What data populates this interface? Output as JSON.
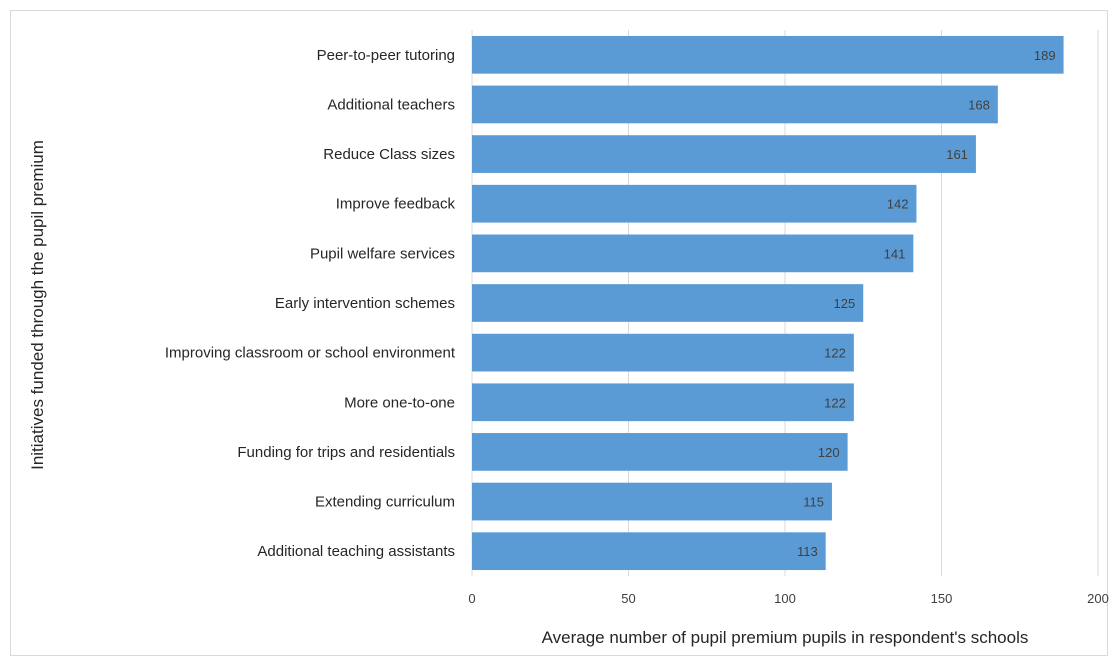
{
  "chart_data": {
    "type": "bar",
    "orientation": "horizontal",
    "categories": [
      "Peer-to-peer tutoring",
      "Additional teachers",
      "Reduce Class sizes",
      "Improve feedback",
      "Pupil welfare services",
      "Early intervention schemes",
      "Improving classroom or school environment",
      "More one-to-one",
      "Funding for trips and residentials",
      "Extending curriculum",
      "Additional teaching assistants"
    ],
    "values": [
      189,
      168,
      161,
      142,
      141,
      125,
      122,
      122,
      120,
      115,
      113
    ],
    "xlabel": "Average number of pupil premium pupils in respondent's schools",
    "ylabel": "Initiatives funded through the pupil premium",
    "xlim": [
      0,
      200
    ],
    "xticks": [
      0,
      50,
      100,
      150,
      200
    ],
    "grid": "vertical",
    "legend": "none",
    "colors": {
      "bar": "#5b9bd5",
      "grid": "#d9d9d9",
      "frame": "#d9d9d9"
    }
  }
}
